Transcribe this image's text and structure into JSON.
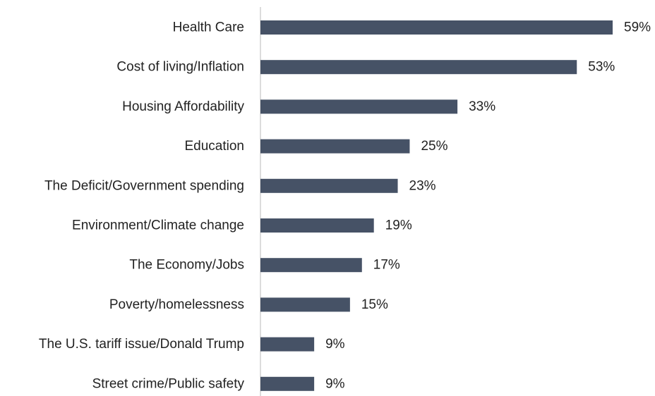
{
  "chart_data": {
    "type": "bar",
    "orientation": "horizontal",
    "title": "",
    "xlabel": "",
    "ylabel": "",
    "categories": [
      "Health Care",
      "Cost of living/Inflation",
      "Housing Affordability",
      "Education",
      "The Deficit/Government spending",
      "Environment/Climate change",
      "The Economy/Jobs",
      "Poverty/homelessness",
      "The U.S. tariff issue/Donald Trump",
      "Street crime/Public safety"
    ],
    "values": [
      59,
      53,
      33,
      25,
      23,
      19,
      17,
      15,
      9,
      9
    ],
    "value_labels": [
      "59%",
      "53%",
      "33%",
      "25%",
      "23%",
      "19%",
      "17%",
      "15%",
      "9%",
      "9%"
    ],
    "xlim": [
      0,
      59
    ],
    "grid": false,
    "legend": "none",
    "colors": {
      "bar": "#465266",
      "axis": "#d0d0d0",
      "text": "#222222"
    }
  }
}
